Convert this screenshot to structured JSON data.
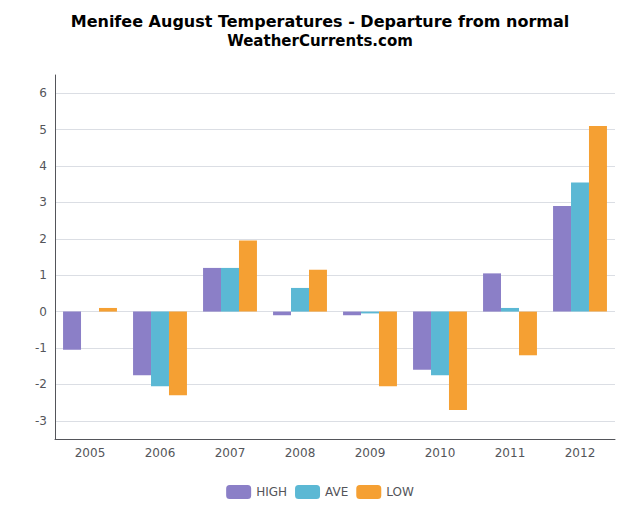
{
  "chart_data": {
    "type": "bar",
    "title": "Menifee August Temperatures - Departure from normal",
    "subtitle": "WeatherCurrents.com",
    "categories": [
      "2005",
      "2006",
      "2007",
      "2008",
      "2009",
      "2010",
      "2011",
      "2012"
    ],
    "series": [
      {
        "name": "HIGH",
        "color": "#8B7FC7",
        "values": [
          -1.05,
          -1.75,
          1.2,
          -0.1,
          -0.1,
          -1.6,
          1.05,
          2.9
        ]
      },
      {
        "name": "AVE",
        "color": "#5BB8D4",
        "values": [
          0.0,
          -2.05,
          1.2,
          0.65,
          -0.05,
          -1.75,
          0.1,
          3.55
        ]
      },
      {
        "name": "LOW",
        "color": "#F5A033",
        "values": [
          0.1,
          -2.3,
          1.95,
          1.15,
          -2.05,
          -2.7,
          -1.2,
          5.1
        ]
      }
    ],
    "ylim": [
      -3.5,
      6.5
    ],
    "yticks": [
      -3,
      -2,
      -1,
      0,
      1,
      2,
      3,
      4,
      5,
      6
    ],
    "grid": true,
    "legend": "bottom"
  }
}
